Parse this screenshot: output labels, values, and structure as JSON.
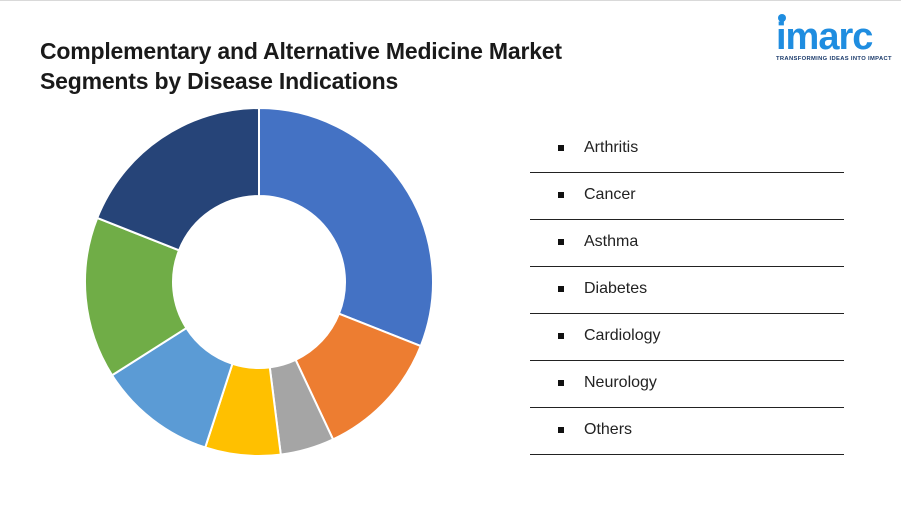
{
  "title": {
    "line1": "Complementary and Alternative Medicine Market",
    "line2": "Segments by Disease Indications"
  },
  "logo": {
    "word": "imarc",
    "tagline": "TRANSFORMING IDEAS INTO IMPACT",
    "color": "#1f8de0"
  },
  "chart_data": {
    "type": "pie",
    "donut": true,
    "categories": [
      "Arthritis",
      "Cancer",
      "Asthma",
      "Diabetes",
      "Cardiology",
      "Neurology",
      "Others"
    ],
    "values": [
      31,
      12,
      5,
      7,
      11,
      15,
      19
    ],
    "colors": [
      "#4472c4",
      "#ed7d31",
      "#a5a5a5",
      "#ffc000",
      "#5b9bd5",
      "#70ad47",
      "#264478"
    ],
    "legend_position": "right"
  }
}
